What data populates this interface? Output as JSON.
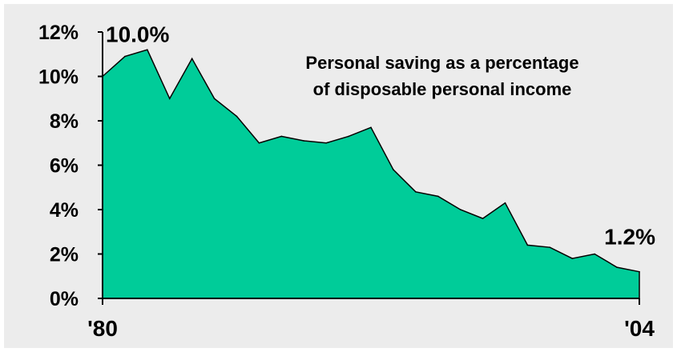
{
  "chart_data": {
    "type": "area",
    "title": "Personal saving as a percentage\nof disposable personal income",
    "title_lines": [
      "Personal saving as a percentage",
      "of disposable personal income"
    ],
    "x": [
      1980,
      1981,
      1982,
      1983,
      1984,
      1985,
      1986,
      1987,
      1988,
      1989,
      1990,
      1991,
      1992,
      1993,
      1994,
      1995,
      1996,
      1997,
      1998,
      1999,
      2000,
      2001,
      2002,
      2003,
      2004
    ],
    "values": [
      10.0,
      10.9,
      11.2,
      9.0,
      10.8,
      9.0,
      8.2,
      7.0,
      7.3,
      7.1,
      7.0,
      7.3,
      7.7,
      5.8,
      4.8,
      4.6,
      4.0,
      3.6,
      4.3,
      2.4,
      2.3,
      1.8,
      2.0,
      1.4,
      1.2
    ],
    "x_tick_labels": [
      {
        "x": 1980,
        "label": "'80"
      },
      {
        "x": 2004,
        "label": "'04"
      }
    ],
    "y_ticks": [
      {
        "value": 0,
        "label": "0%"
      },
      {
        "value": 2,
        "label": "2%"
      },
      {
        "value": 4,
        "label": "4%"
      },
      {
        "value": 6,
        "label": "6%"
      },
      {
        "value": 8,
        "label": "8%"
      },
      {
        "value": 10,
        "label": "10%"
      },
      {
        "value": 12,
        "label": "12%"
      }
    ],
    "ylim": [
      0,
      12
    ],
    "xlim": [
      1980,
      2004
    ],
    "annotations": [
      {
        "x": 1980,
        "y": 10.0,
        "label": "10.0%"
      },
      {
        "x": 2004,
        "y": 1.2,
        "label": "1.2%"
      }
    ],
    "xlabel": "",
    "ylabel": "",
    "grid": false,
    "colors": {
      "fill": "#00cc99",
      "line": "#000000",
      "background": "#ececec"
    }
  }
}
